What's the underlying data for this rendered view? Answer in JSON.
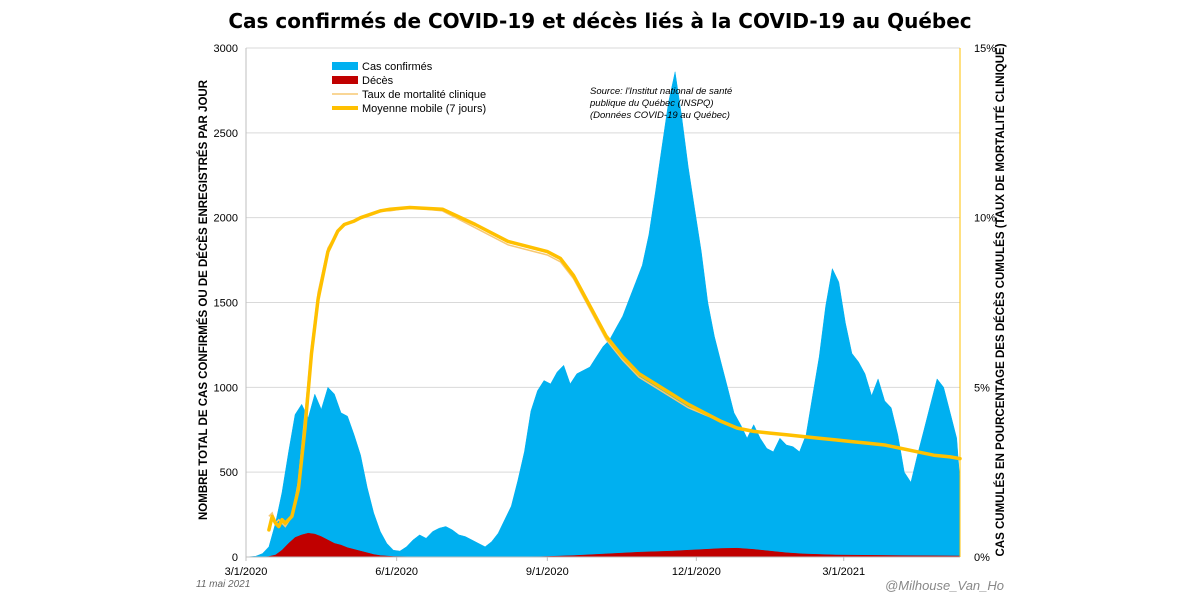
{
  "chart_data": {
    "type": "bar",
    "title": "Cas confirmés de COVID-19 et décès liés à la COVID-19 au Québec",
    "ylabel": "NOMBRE TOTAL DE CAS CONFIRMÉS OU DE DÉCÈS ENREGISTRÉS PAR JOUR",
    "ylabel_right": "CAS CUMULÉS EN POURCENTAGE DES DÉCÈS CUMULÉS (TAUX DE MORTALITÉ CLINIQUE)",
    "ylim": [
      0,
      3000
    ],
    "ylim_right": [
      0,
      15
    ],
    "y_ticks": [
      "0",
      "500",
      "1000",
      "1500",
      "2000",
      "2500",
      "3000"
    ],
    "y_right_ticks": [
      "0%",
      "5%",
      "10%",
      "15%"
    ],
    "x_ticks": [
      "3/1/2020",
      "6/1/2020",
      "9/1/2020",
      "12/1/2020",
      "3/1/2021"
    ],
    "x_tick_days": [
      0,
      92,
      184,
      275,
      365
    ],
    "x_range_days": [
      0,
      436
    ],
    "legend_position": "top-left",
    "legend": [
      "Cas confirmés",
      "Décès",
      "Taux de mortalité clinique",
      "Moyenne mobile (7 jours)"
    ],
    "source_lines": [
      "Source: l'Institut national de santé",
      "publique du Québec (INSPQ)",
      "(Données COVID-19 au Québec)"
    ],
    "date_note": "11 mai 2021",
    "credit": "@Milhouse_Van_Ho",
    "colors": {
      "cases": "#00b0f0",
      "deaths": "#c00000",
      "rate": "#f7c873",
      "moving_average": "#ffc000",
      "right_axis": "#ffc000"
    },
    "series": [
      {
        "name": "Cas confirmés",
        "axis": "left",
        "x_days": [
          0,
          6,
          10,
          14,
          18,
          22,
          26,
          30,
          34,
          38,
          42,
          46,
          50,
          54,
          58,
          62,
          66,
          70,
          74,
          78,
          82,
          86,
          90,
          94,
          98,
          102,
          106,
          110,
          114,
          118,
          122,
          126,
          130,
          134,
          138,
          142,
          146,
          150,
          154,
          158,
          162,
          166,
          170,
          174,
          178,
          182,
          186,
          190,
          194,
          198,
          202,
          206,
          210,
          214,
          218,
          222,
          226,
          230,
          234,
          238,
          242,
          246,
          250,
          254,
          258,
          262,
          266,
          270,
          274,
          278,
          282,
          286,
          290,
          294,
          298,
          302,
          306,
          310,
          314,
          318,
          322,
          326,
          330,
          334,
          338,
          342,
          346,
          350,
          354,
          358,
          362,
          366,
          370,
          374,
          378,
          382,
          386,
          390,
          394,
          398,
          402,
          406,
          410,
          414,
          418,
          422,
          426,
          430,
          434,
          436
        ],
        "values": [
          0,
          5,
          20,
          60,
          200,
          380,
          620,
          840,
          900,
          820,
          960,
          870,
          1000,
          960,
          850,
          830,
          720,
          600,
          410,
          260,
          150,
          80,
          40,
          35,
          60,
          100,
          130,
          110,
          150,
          170,
          180,
          160,
          130,
          120,
          100,
          80,
          60,
          90,
          140,
          220,
          300,
          450,
          620,
          860,
          980,
          1040,
          1020,
          1090,
          1130,
          1020,
          1080,
          1100,
          1120,
          1180,
          1240,
          1280,
          1350,
          1420,
          1520,
          1620,
          1720,
          1900,
          2150,
          2420,
          2680,
          2860,
          2600,
          2300,
          2050,
          1800,
          1500,
          1300,
          1150,
          1000,
          850,
          780,
          700,
          780,
          700,
          640,
          620,
          700,
          660,
          650,
          620,
          720,
          950,
          1180,
          1480,
          1700,
          1620,
          1380,
          1200,
          1150,
          1080,
          950,
          1050,
          920,
          880,
          720,
          500,
          440,
          600,
          750,
          900,
          1050,
          1000,
          850,
          700,
          440
        ]
      },
      {
        "name": "Décès",
        "axis": "left",
        "x_days": [
          0,
          10,
          14,
          18,
          22,
          26,
          30,
          34,
          38,
          42,
          46,
          50,
          54,
          58,
          62,
          66,
          70,
          74,
          78,
          82,
          90,
          100,
          140,
          180,
          200,
          220,
          240,
          260,
          270,
          280,
          290,
          300,
          310,
          320,
          330,
          340,
          360,
          400,
          436
        ],
        "values": [
          0,
          0,
          3,
          12,
          40,
          80,
          115,
          130,
          140,
          135,
          120,
          100,
          80,
          70,
          55,
          45,
          35,
          25,
          15,
          8,
          3,
          1,
          0,
          2,
          8,
          18,
          28,
          35,
          40,
          45,
          50,
          52,
          45,
          35,
          25,
          18,
          12,
          8,
          6
        ]
      },
      {
        "name": "Taux de mortalité clinique",
        "axis": "right",
        "x_days": [
          14,
          16,
          18,
          20,
          22,
          24,
          28,
          32,
          36,
          40,
          44,
          50,
          56,
          60,
          66,
          70,
          76,
          82,
          88,
          100,
          120,
          140,
          160,
          176,
          184,
          192,
          200,
          210,
          220,
          230,
          240,
          250,
          260,
          270,
          280,
          290,
          300,
          310,
          320,
          330,
          340,
          350,
          360,
          370,
          380,
          390,
          400,
          410,
          420,
          430,
          436
        ],
        "values": [
          1.2,
          1.3,
          1.0,
          1.1,
          1.0,
          0.9,
          1.2,
          2.2,
          4.2,
          6.2,
          7.8,
          9.1,
          9.6,
          9.8,
          9.9,
          10.0,
          10.1,
          10.2,
          10.2,
          10.3,
          10.2,
          9.7,
          9.2,
          9.0,
          8.9,
          8.7,
          8.2,
          7.3,
          6.4,
          5.8,
          5.3,
          5.0,
          4.7,
          4.4,
          4.2,
          4.0,
          3.8,
          3.7,
          3.65,
          3.6,
          3.55,
          3.5,
          3.45,
          3.4,
          3.35,
          3.3,
          3.2,
          3.1,
          3.0,
          2.95,
          2.9
        ]
      },
      {
        "name": "Moyenne mobile (7 jours)",
        "axis": "right",
        "x_days": [
          14,
          16,
          18,
          20,
          22,
          24,
          28,
          32,
          36,
          40,
          44,
          50,
          56,
          60,
          66,
          70,
          76,
          82,
          88,
          100,
          120,
          140,
          160,
          176,
          184,
          192,
          200,
          210,
          220,
          230,
          240,
          250,
          260,
          270,
          280,
          290,
          300,
          310,
          320,
          330,
          340,
          350,
          360,
          370,
          380,
          390,
          400,
          410,
          420,
          430,
          436
        ],
        "values": [
          0.8,
          1.2,
          1.0,
          0.9,
          1.1,
          1.0,
          1.2,
          2.0,
          3.8,
          6.0,
          7.6,
          9.0,
          9.6,
          9.8,
          9.9,
          10.0,
          10.1,
          10.2,
          10.25,
          10.3,
          10.25,
          9.8,
          9.3,
          9.1,
          9.0,
          8.8,
          8.3,
          7.4,
          6.5,
          5.9,
          5.4,
          5.1,
          4.8,
          4.5,
          4.25,
          4.0,
          3.8,
          3.7,
          3.65,
          3.6,
          3.55,
          3.5,
          3.45,
          3.4,
          3.35,
          3.3,
          3.2,
          3.1,
          3.0,
          2.95,
          2.9
        ]
      }
    ]
  }
}
